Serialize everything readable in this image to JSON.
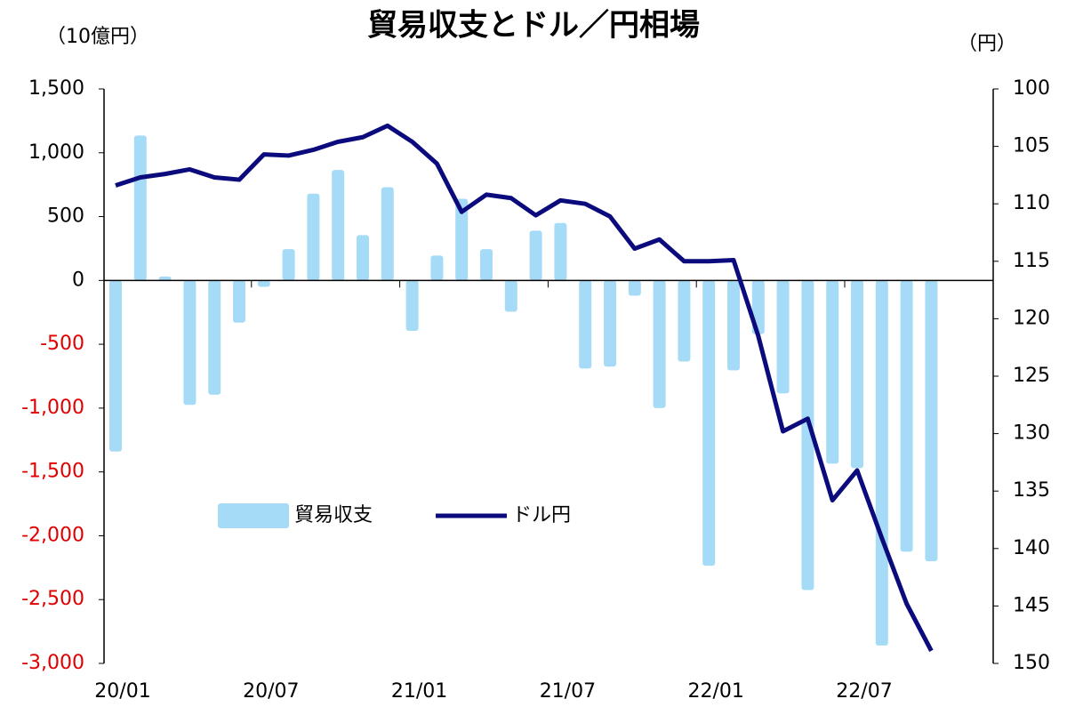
{
  "chart_data": {
    "type": "bar_line",
    "title": "貿易収支とドル／円相場",
    "ylabel": "（10億円）",
    "y2label": "（円）",
    "categories": [
      "20/01",
      null,
      null,
      null,
      null,
      null,
      "20/07",
      null,
      null,
      null,
      null,
      null,
      "21/01",
      null,
      null,
      null,
      null,
      null,
      "21/07",
      null,
      null,
      null,
      null,
      null,
      "22/01",
      null,
      null,
      null,
      null,
      null,
      "22/07",
      null,
      null,
      null
    ],
    "series": [
      {
        "name": "貿易収支",
        "type": "bar",
        "color": "#a6dbf7",
        "values": [
          -1340,
          1135,
          30,
          -975,
          -895,
          -330,
          -50,
          245,
          680,
          865,
          355,
          730,
          -395,
          195,
          640,
          245,
          -245,
          390,
          450,
          -690,
          -675,
          -120,
          -1000,
          -635,
          -2235,
          -705,
          -420,
          -885,
          -2425,
          -1435,
          -1470,
          -2860,
          -2125,
          -2200
        ]
      },
      {
        "name": "ドル円",
        "type": "line",
        "axis": "y2",
        "color": "#0b0b7e",
        "values": [
          108.4,
          107.7,
          107.4,
          107.0,
          107.7,
          107.9,
          105.7,
          105.8,
          105.3,
          104.6,
          104.2,
          103.2,
          104.6,
          106.5,
          110.7,
          109.2,
          109.5,
          111.0,
          109.7,
          110.0,
          111.1,
          113.9,
          113.1,
          115.0,
          115.0,
          114.9,
          121.5,
          129.8,
          128.7,
          135.8,
          133.2,
          139.1,
          144.8,
          148.9
        ]
      }
    ],
    "ylim": [
      -3000,
      1500
    ],
    "yticks": [
      {
        "value": -3000,
        "label": "-3,000"
      },
      {
        "value": -2500,
        "label": "-2,500"
      },
      {
        "value": -2000,
        "label": "-2,000"
      },
      {
        "value": -1500,
        "label": "-1,500"
      },
      {
        "value": -1000,
        "label": "-1,000"
      },
      -500,
      0,
      500,
      {
        "value": 1000,
        "label": "1,000"
      },
      {
        "value": 1500,
        "label": "1,500"
      }
    ],
    "negative_tick_color": "#e00000",
    "y2lim": [
      100,
      150
    ],
    "y2_inverted": true,
    "y2ticks": [
      100,
      105,
      110,
      115,
      120,
      125,
      130,
      135,
      140,
      145,
      150
    ],
    "legend": "center-left"
  }
}
